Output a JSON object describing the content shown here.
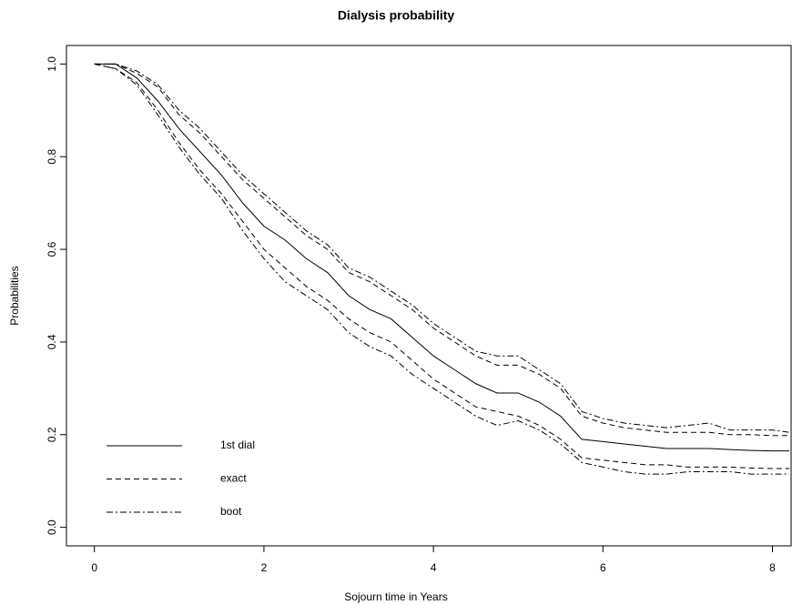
{
  "chart_data": {
    "type": "line",
    "title": "Dialysis probability",
    "x_label": "Sojourn time in Years",
    "y_label": "Probabilities",
    "xlim": [
      -0.33,
      8.22
    ],
    "ylim": [
      -0.04,
      1.04
    ],
    "xticks": [
      0,
      2,
      4,
      6,
      8
    ],
    "yticks": [
      {
        "value": 0,
        "label": "0.0"
      },
      0.2,
      0.4,
      0.6,
      0.8,
      {
        "value": 1,
        "label": "1.0"
      }
    ],
    "legend_position": "bottomleft",
    "x": [
      0,
      0.25,
      0.5,
      0.75,
      1,
      1.25,
      1.5,
      1.75,
      2,
      2.25,
      2.5,
      2.75,
      3,
      3.25,
      3.5,
      3.75,
      4,
      4.25,
      4.5,
      4.75,
      5,
      5.25,
      5.5,
      5.75,
      6,
      6.25,
      6.5,
      6.75,
      7,
      7.25,
      7.5,
      7.75,
      8,
      8.2
    ],
    "series": [
      {
        "name": "1st dial",
        "color": "#000000",
        "dash": "solid",
        "lines": [
          [
            1.0,
            1.0,
            0.97,
            0.92,
            0.86,
            0.81,
            0.76,
            0.7,
            0.65,
            0.62,
            0.58,
            0.55,
            0.5,
            0.47,
            0.45,
            0.41,
            0.37,
            0.34,
            0.31,
            0.29,
            0.29,
            0.27,
            0.24,
            0.19,
            0.185,
            0.18,
            0.175,
            0.17,
            0.17,
            0.17,
            0.168,
            0.166,
            0.165,
            0.165
          ]
        ]
      },
      {
        "name": "exact",
        "color": "#000000",
        "dash": "dashed",
        "lines": [
          [
            1.0,
            0.99,
            0.96,
            0.9,
            0.83,
            0.77,
            0.72,
            0.66,
            0.6,
            0.56,
            0.52,
            0.49,
            0.45,
            0.42,
            0.4,
            0.36,
            0.32,
            0.29,
            0.26,
            0.25,
            0.24,
            0.22,
            0.19,
            0.15,
            0.145,
            0.14,
            0.135,
            0.135,
            0.13,
            0.13,
            0.13,
            0.128,
            0.127,
            0.127
          ],
          [
            1.0,
            1.0,
            0.98,
            0.95,
            0.89,
            0.85,
            0.8,
            0.75,
            0.71,
            0.67,
            0.63,
            0.6,
            0.55,
            0.53,
            0.5,
            0.47,
            0.43,
            0.4,
            0.37,
            0.35,
            0.35,
            0.33,
            0.3,
            0.24,
            0.225,
            0.215,
            0.21,
            0.205,
            0.205,
            0.205,
            0.2,
            0.2,
            0.198,
            0.198
          ]
        ]
      },
      {
        "name": "boot",
        "color": "#000000",
        "dash": "dotdash",
        "lines": [
          [
            1.0,
            0.99,
            0.955,
            0.89,
            0.82,
            0.76,
            0.71,
            0.64,
            0.58,
            0.53,
            0.5,
            0.47,
            0.42,
            0.39,
            0.37,
            0.33,
            0.3,
            0.27,
            0.24,
            0.22,
            0.23,
            0.21,
            0.18,
            0.14,
            0.13,
            0.12,
            0.115,
            0.115,
            0.12,
            0.12,
            0.12,
            0.115,
            0.115,
            0.115
          ],
          [
            1.0,
            1.0,
            0.985,
            0.955,
            0.9,
            0.86,
            0.81,
            0.76,
            0.72,
            0.68,
            0.64,
            0.61,
            0.56,
            0.54,
            0.51,
            0.48,
            0.44,
            0.41,
            0.38,
            0.37,
            0.37,
            0.34,
            0.31,
            0.25,
            0.235,
            0.225,
            0.22,
            0.215,
            0.22,
            0.225,
            0.21,
            0.21,
            0.21,
            0.205
          ]
        ]
      }
    ]
  }
}
